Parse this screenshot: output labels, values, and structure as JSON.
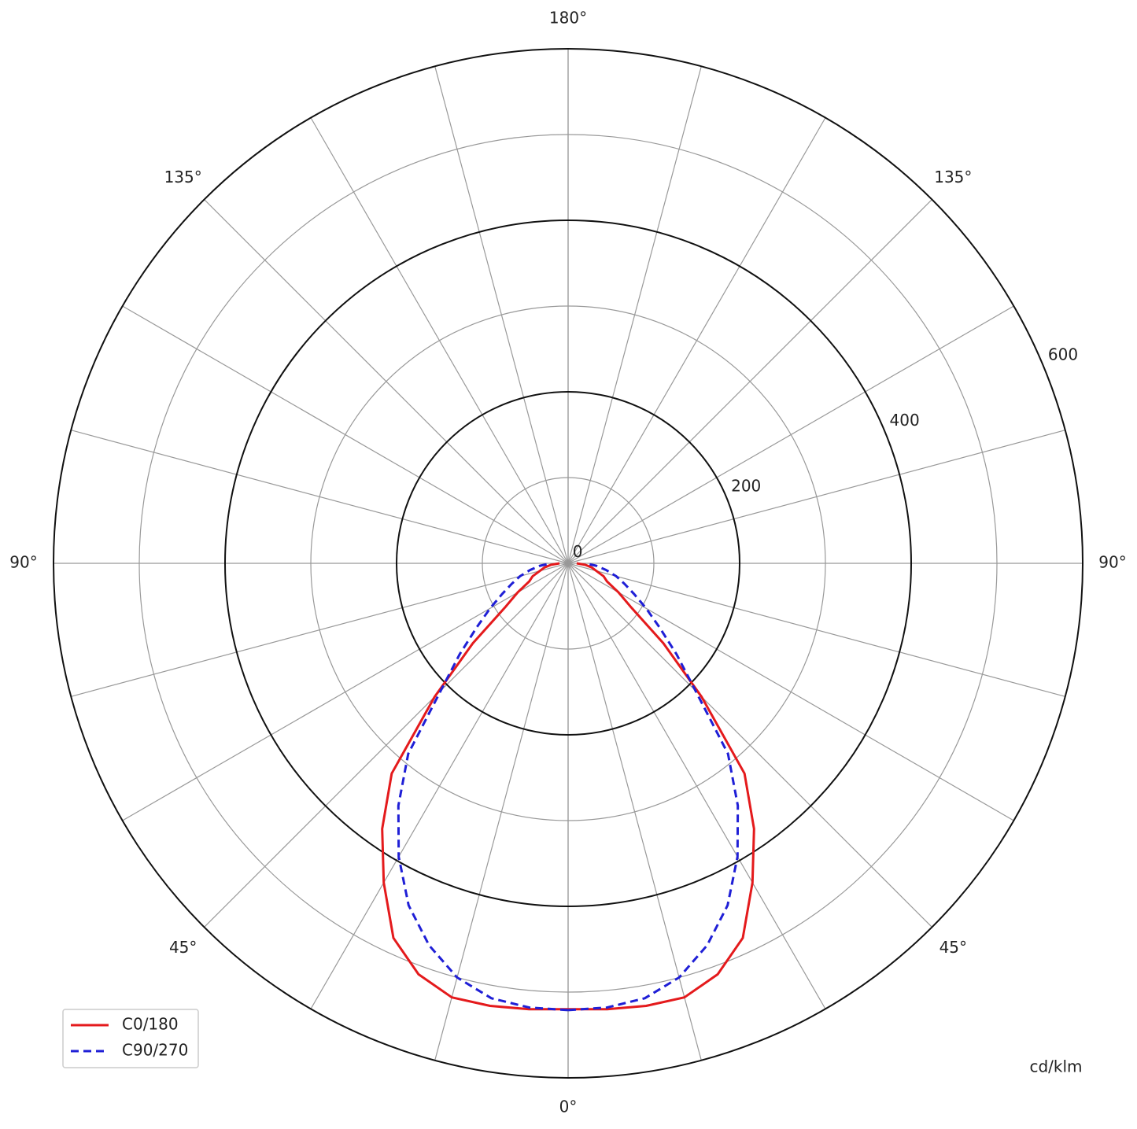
{
  "chart_data": {
    "type": "polar-line",
    "unit_label": "cd/klm",
    "rlim": [
      0,
      600
    ],
    "rticks": [
      0,
      200,
      400,
      600
    ],
    "rgrid_minor": [
      100,
      300,
      500
    ],
    "thetaticks": [
      {
        "value": 0,
        "label": "0°"
      },
      {
        "value": 45,
        "label": "45°"
      },
      {
        "value": 90,
        "label": "90°"
      },
      {
        "value": 135,
        "label": "135°"
      },
      {
        "value": 180,
        "label": "180°"
      }
    ],
    "thetagrid": [
      0,
      15,
      30,
      45,
      60,
      75,
      90,
      105,
      120,
      135,
      150,
      165,
      180
    ],
    "gamma": [
      0,
      5,
      10,
      15,
      20,
      25,
      30,
      35,
      40,
      45,
      50,
      55,
      60,
      65,
      70,
      75,
      80,
      85,
      90
    ],
    "series": [
      {
        "name": "C0/180",
        "color": "#e41a1c",
        "dash": false,
        "values": [
          520,
          522,
          524,
          524,
          510,
          482,
          430,
          378,
          320,
          220,
          145,
          90,
          68,
          50,
          44,
          34,
          28,
          20,
          10
        ]
      },
      {
        "name": "C90/270",
        "color": "#1f1fd6",
        "dash": true,
        "values": [
          521,
          520,
          515,
          500,
          474,
          440,
          395,
          345,
          290,
          210,
          165,
          130,
          105,
          85,
          70,
          58,
          45,
          33,
          20
        ]
      }
    ],
    "legend": "lower left"
  }
}
